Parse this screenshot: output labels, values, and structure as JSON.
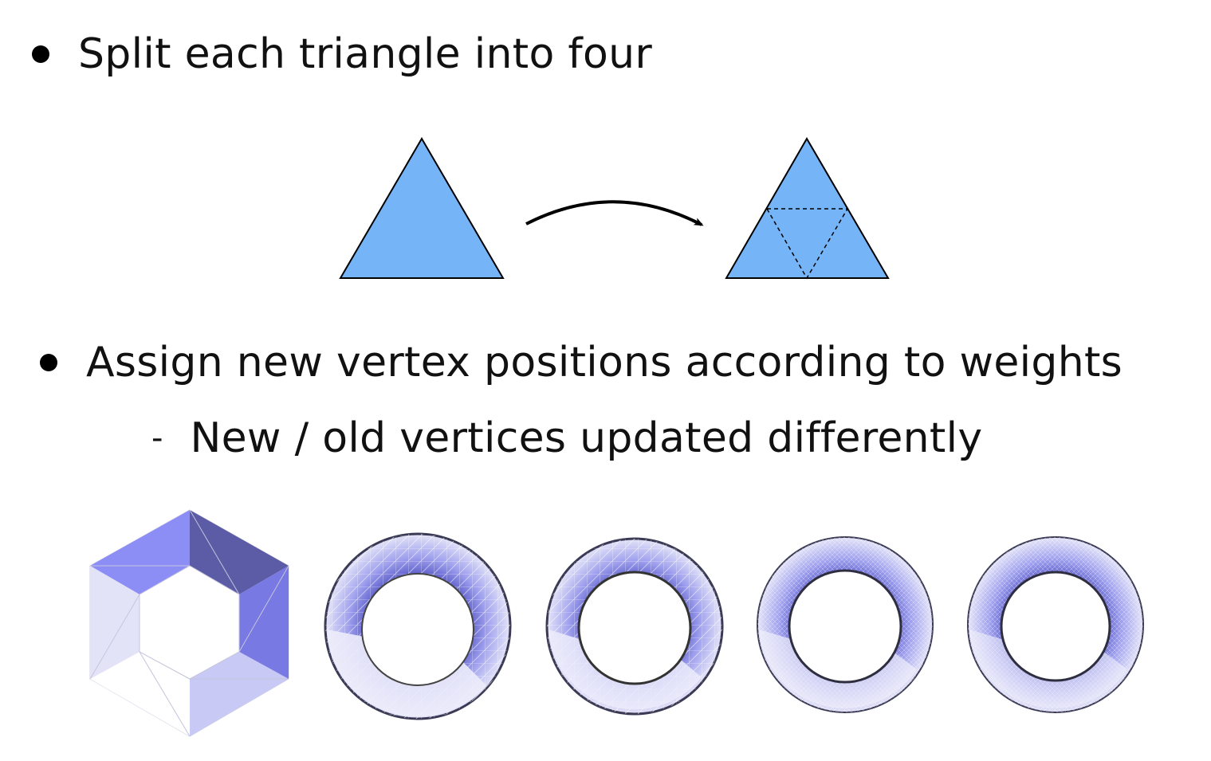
{
  "bullets": {
    "first": "Split each triangle into four",
    "second": "Assign new vertex positions according to weights",
    "sub": "New / old vertices updated differently",
    "sub_marker": "-"
  },
  "colors": {
    "triangle_fill": "#75b5f7",
    "mesh_light": "#dcdcf7",
    "mesh_mid": "#9a9bf0",
    "mesh_dark": "#5a5aa6"
  },
  "icons": {
    "bullet": "filled-circle",
    "arrow": "curved-arrow-right"
  },
  "meshes": [
    {
      "name": "hexagon-mesh-level-0"
    },
    {
      "name": "torus-mesh-level-1"
    },
    {
      "name": "torus-mesh-level-2"
    },
    {
      "name": "torus-mesh-level-3"
    },
    {
      "name": "torus-mesh-level-4"
    }
  ]
}
